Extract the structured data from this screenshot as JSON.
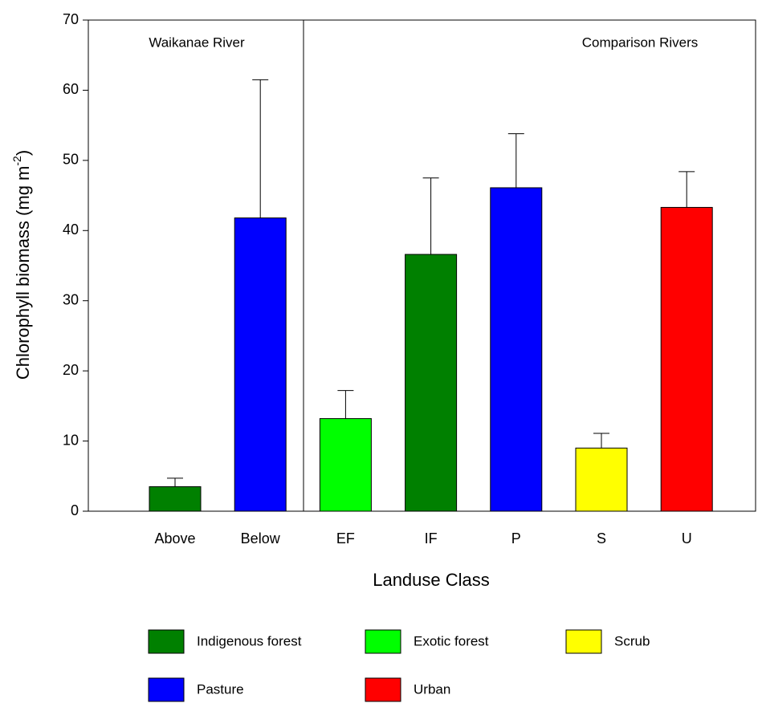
{
  "chart_data": {
    "type": "bar",
    "categories": [
      "Above",
      "Below",
      "EF",
      "IF",
      "P",
      "S",
      "U"
    ],
    "values": [
      3.5,
      41.8,
      13.2,
      36.6,
      46.1,
      9.0,
      43.3
    ],
    "errors": [
      1.2,
      19.7,
      4.0,
      10.9,
      7.7,
      2.1,
      5.1
    ],
    "colors": [
      "#008000",
      "#0000ff",
      "#00ff00",
      "#008000",
      "#0000ff",
      "#ffff00",
      "#ff0000"
    ],
    "ylim": [
      0,
      70
    ],
    "yticks": [
      0,
      10,
      20,
      30,
      40,
      50,
      60,
      70
    ],
    "x_label": "Landuse Class",
    "y_label": {
      "text": "Chlorophyll biomass (mg m",
      "superscript": "-2",
      "end": ")"
    },
    "annotations": [
      "Waikanae River",
      "Comparison Rivers"
    ],
    "legend": [
      {
        "label": "Indigenous forest",
        "color": "#008000"
      },
      {
        "label": "Exotic forest",
        "color": "#00ff00"
      },
      {
        "label": "Scrub",
        "color": "#ffff00"
      },
      {
        "label": "Pasture",
        "color": "#0000ff"
      },
      {
        "label": "Urban",
        "color": "#ff0000"
      }
    ]
  }
}
